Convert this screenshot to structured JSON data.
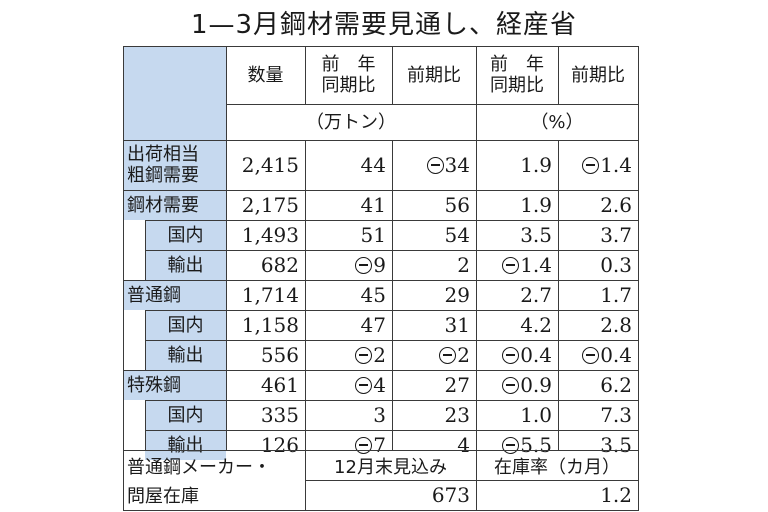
{
  "title": "1—3月鋼材需要見通し、経産省",
  "headers": {
    "qty": "数量",
    "yoy": "前　年\n同期比",
    "qoq": "前期比",
    "yoy_pct": "前　年\n同期比",
    "qoq_pct": "前期比",
    "unit_tons": "（万トン）",
    "unit_pct": "（%）"
  },
  "rows": [
    {
      "label": "出荷相当\n粗鋼需要",
      "indent": 0,
      "qty": "2,415",
      "yoy": "44",
      "qoq": "-34",
      "yoy_pct": "1.9",
      "qoq_pct": "-1.4"
    },
    {
      "label": "鋼材需要",
      "indent": 0,
      "qty": "2,175",
      "yoy": "41",
      "qoq": "56",
      "yoy_pct": "1.9",
      "qoq_pct": "2.6"
    },
    {
      "label": "国内",
      "indent": 1,
      "qty": "1,493",
      "yoy": "51",
      "qoq": "54",
      "yoy_pct": "3.5",
      "qoq_pct": "3.7"
    },
    {
      "label": "輸出",
      "indent": 1,
      "qty": "682",
      "yoy": "-9",
      "qoq": "2",
      "yoy_pct": "-1.4",
      "qoq_pct": "0.3"
    },
    {
      "label": "普通鋼",
      "indent": 0,
      "qty": "1,714",
      "yoy": "45",
      "qoq": "29",
      "yoy_pct": "2.7",
      "qoq_pct": "1.7"
    },
    {
      "label": "国内",
      "indent": 1,
      "qty": "1,158",
      "yoy": "47",
      "qoq": "31",
      "yoy_pct": "4.2",
      "qoq_pct": "2.8"
    },
    {
      "label": "輸出",
      "indent": 1,
      "qty": "556",
      "yoy": "-2",
      "qoq": "-2",
      "yoy_pct": "-0.4",
      "qoq_pct": "-0.4"
    },
    {
      "label": "特殊鋼",
      "indent": 0,
      "qty": "461",
      "yoy": "-4",
      "qoq": "27",
      "yoy_pct": "-0.9",
      "qoq_pct": "6.2"
    },
    {
      "label": "国内",
      "indent": 1,
      "qty": "335",
      "yoy": "3",
      "qoq": "23",
      "yoy_pct": "1.0",
      "qoq_pct": "7.3"
    },
    {
      "label": "輸出",
      "indent": 1,
      "qty": "126",
      "yoy": "-7",
      "qoq": "4",
      "yoy_pct": "-5.5",
      "qoq_pct": "3.5"
    }
  ],
  "inventory": {
    "label1": "普通鋼メーカー・",
    "label2": "問屋在庫",
    "col_label": "12月末見込み",
    "col_value": "673",
    "ratio_label": "在庫率（カ月）",
    "ratio_value": "1.2"
  }
}
